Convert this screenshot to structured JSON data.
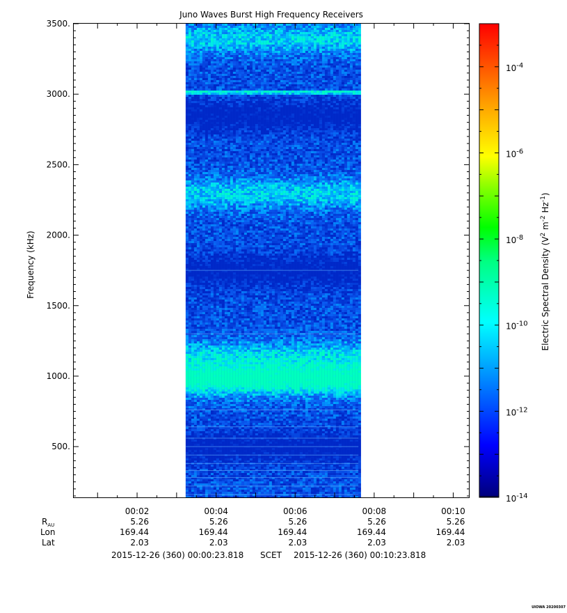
{
  "chart_data": {
    "type": "heatmap",
    "title": "Juno Waves Burst High Frequency Receivers",
    "ylabel": "Frequency (kHz)",
    "y_range": [
      140,
      3500
    ],
    "y_ticks": [
      {
        "value": 500,
        "label": "500."
      },
      {
        "value": 1000,
        "label": "1000."
      },
      {
        "value": 1500,
        "label": "1500."
      },
      {
        "value": 2000,
        "label": "2000."
      },
      {
        "value": 2500,
        "label": "2500."
      },
      {
        "value": 3000,
        "label": "3000."
      },
      {
        "value": 3500,
        "label": "3500."
      }
    ],
    "x_range_minutes": [
      0.397,
      10.397
    ],
    "x_ticks": [
      {
        "minute": 2,
        "label": "00:02"
      },
      {
        "minute": 4,
        "label": "00:04"
      },
      {
        "minute": 6,
        "label": "00:06"
      },
      {
        "minute": 8,
        "label": "00:08"
      },
      {
        "minute": 10,
        "label": "00:10"
      }
    ],
    "data_interval_minutes": [
      3.23,
      7.6
    ],
    "spectral_bands": [
      {
        "freq_khz": 3020,
        "level": "enhanced"
      },
      {
        "freq_khz": 980,
        "level": "enhanced"
      },
      {
        "freq_khz": 2300,
        "level": "moderate"
      },
      {
        "freq_khz": 1150,
        "level": "moderate"
      },
      {
        "freq_khz": 3400,
        "level": "moderate"
      },
      {
        "freq_khz": 1750,
        "level": "low"
      },
      {
        "freq_khz": 2850,
        "level": "low"
      },
      {
        "freq_khz": 500,
        "level": "low"
      }
    ],
    "colorbar": {
      "label": "Electric Spectral Density (V2 m-2 Hz-1)",
      "log_range": [
        -14,
        -3
      ],
      "ticks": [
        {
          "exp": -14,
          "base": "10",
          "exponent": "-14"
        },
        {
          "exp": -12,
          "base": "10",
          "exponent": "-12"
        },
        {
          "exp": -10,
          "base": "10",
          "exponent": "-10"
        },
        {
          "exp": -8,
          "base": "10",
          "exponent": "-8"
        },
        {
          "exp": -6,
          "base": "10",
          "exponent": "-6"
        },
        {
          "exp": -4,
          "base": "10",
          "exponent": "-4"
        }
      ]
    },
    "ephemeris": {
      "row_labels": {
        "rau_main": "R",
        "rau_sub": "AU",
        "lon": "Lon",
        "lat": "Lat"
      },
      "columns": [
        {
          "time": "00:02",
          "rau": "5.26",
          "lon": "169.44",
          "lat": "2.03"
        },
        {
          "time": "00:04",
          "rau": "5.26",
          "lon": "169.44",
          "lat": "2.03"
        },
        {
          "time": "00:06",
          "rau": "5.26",
          "lon": "169.44",
          "lat": "2.03"
        },
        {
          "time": "00:08",
          "rau": "5.26",
          "lon": "169.44",
          "lat": "2.03"
        },
        {
          "time": "00:10",
          "rau": "5.26",
          "lon": "169.44",
          "lat": "2.03"
        }
      ]
    },
    "time_span": {
      "start": "2015-12-26 (360) 00:00:23.818",
      "middle": "SCET",
      "end": "2015-12-26 (360) 00:10:23.818"
    },
    "watermark": "UIOWA 20200307"
  }
}
